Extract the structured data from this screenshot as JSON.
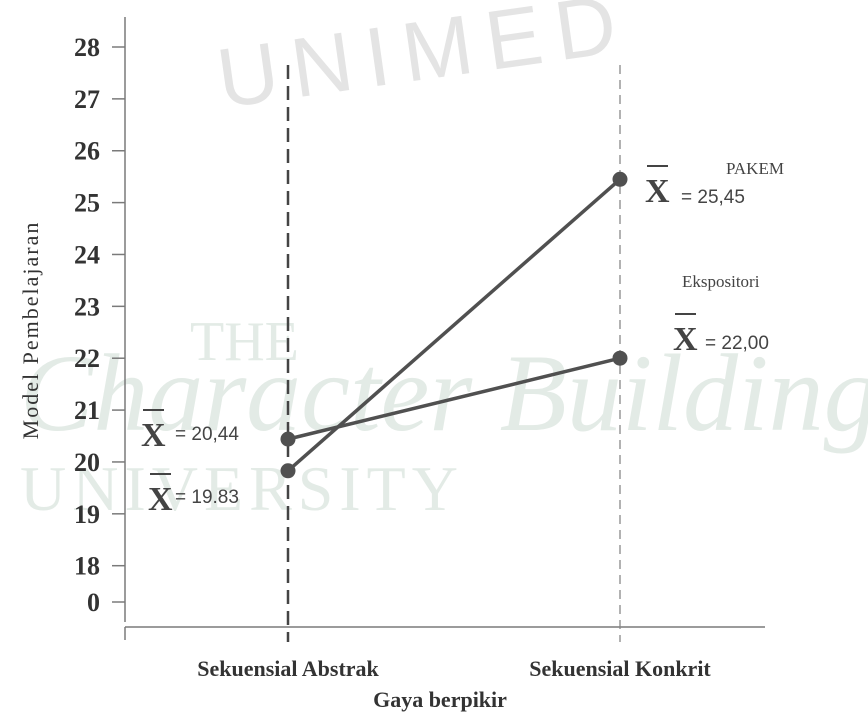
{
  "watermark": {
    "line1": "UNIMED",
    "line2": "THE",
    "line3": "Character Building",
    "line4": "UNIVERSITY"
  },
  "chart_data": {
    "type": "line",
    "xlabel": "Gaya berpikir",
    "ylabel": "Model Pembelajaran",
    "categories": [
      "Sekuensial Abstrak",
      "Sekuensial Konkrit"
    ],
    "y_ticks": [
      "0",
      "18",
      "19",
      "20",
      "21",
      "22",
      "23",
      "24",
      "25",
      "26",
      "27",
      "28"
    ],
    "ylim": [
      17.3,
      28
    ],
    "axis_break": "0 shown below 18",
    "series": [
      {
        "name": "PAKEM",
        "values": [
          19.83,
          25.45
        ],
        "labels": [
          "19.83",
          "25,45"
        ]
      },
      {
        "name": "Ekspositori",
        "values": [
          20.44,
          22.0
        ],
        "labels": [
          "20,44",
          "22,00"
        ]
      }
    ],
    "mean_symbol": "X",
    "mean_prefix": "= ",
    "line_color": "#505050",
    "grid": false,
    "legend": "right"
  }
}
